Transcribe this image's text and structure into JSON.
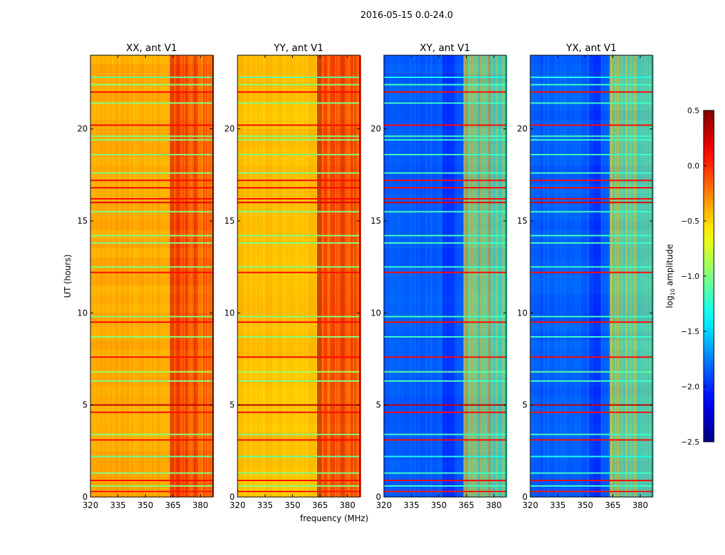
{
  "chart_data": {
    "type": "heatmap",
    "suptitle": "2016-05-15 0.0-24.0",
    "xlabel": "frequency (MHz)",
    "ylabel": "UT (hours)",
    "xlim": [
      320,
      386.7
    ],
    "ylim": [
      0,
      24
    ],
    "xticks": [
      "320",
      "335",
      "350",
      "365",
      "380"
    ],
    "xtick_values": [
      320,
      335,
      350,
      365,
      380
    ],
    "yticks": [
      "0",
      "5",
      "10",
      "15",
      "20"
    ],
    "ytick_values": [
      0,
      5,
      10,
      15,
      20
    ],
    "high_band_start_mhz": 363,
    "bright_channels_mhz": [
      364,
      367.5,
      372,
      377
    ],
    "panels": [
      {
        "title": "XX, ant V1",
        "low_band_level": -0.38,
        "high_band_level": -0.05
      },
      {
        "title": "YY, ant V1",
        "low_band_level": -0.45,
        "high_band_level": 0.05
      },
      {
        "title": "XY, ant V1",
        "low_band_level": -1.85,
        "high_band_level": -0.95
      },
      {
        "title": "YX, ant V1",
        "low_band_level": -1.85,
        "high_band_level": -0.95
      }
    ],
    "rfi_rows": [
      {
        "hour": 0.3,
        "level": 0.05
      },
      {
        "hour": 0.6,
        "level": -1.0
      },
      {
        "hour": 0.9,
        "level": 0.1
      },
      {
        "hour": 1.3,
        "level": -1.0
      },
      {
        "hour": 2.2,
        "level": -1.1
      },
      {
        "hour": 3.1,
        "level": 0.1
      },
      {
        "hour": 3.4,
        "level": -1.0
      },
      {
        "hour": 4.6,
        "level": 0.1
      },
      {
        "hour": 5.0,
        "level": 0.3
      },
      {
        "hour": 6.3,
        "level": -1.0
      },
      {
        "hour": 6.8,
        "level": -0.9
      },
      {
        "hour": 7.6,
        "level": 0.1
      },
      {
        "hour": 8.7,
        "level": -1.0
      },
      {
        "hour": 9.5,
        "level": 0.1
      },
      {
        "hour": 9.8,
        "level": -1.0
      },
      {
        "hour": 12.2,
        "level": 0.1
      },
      {
        "hour": 12.5,
        "level": -1.0
      },
      {
        "hour": 13.8,
        "level": -1.0
      },
      {
        "hour": 14.2,
        "level": -1.0
      },
      {
        "hour": 15.5,
        "level": -1.0
      },
      {
        "hour": 16.0,
        "level": 0.2
      },
      {
        "hour": 16.2,
        "level": 0.1
      },
      {
        "hour": 16.8,
        "level": 0.1
      },
      {
        "hour": 17.2,
        "level": 0.1
      },
      {
        "hour": 17.6,
        "level": -1.0
      },
      {
        "hour": 18.6,
        "level": -1.0
      },
      {
        "hour": 19.4,
        "level": -1.0
      },
      {
        "hour": 19.6,
        "level": -1.0
      },
      {
        "hour": 20.2,
        "level": 0.1
      },
      {
        "hour": 21.4,
        "level": -1.0
      },
      {
        "hour": 22.0,
        "level": 0.1
      },
      {
        "hour": 22.4,
        "level": -1.0
      },
      {
        "hour": 22.8,
        "level": -1.1
      }
    ],
    "colorbar": {
      "label": "log10 amplitude",
      "label_main": "log",
      "label_sub": "10",
      "label_rest": " amplitude",
      "range": [
        -2.5,
        0.5
      ],
      "ticks": [
        "0.5",
        "0.0",
        "−0.5",
        "−1.0",
        "−1.5",
        "−2.0",
        "−2.5"
      ],
      "tick_values": [
        0.5,
        0.0,
        -0.5,
        -1.0,
        -1.5,
        -2.0,
        -2.5
      ],
      "colormap": "jet"
    }
  }
}
